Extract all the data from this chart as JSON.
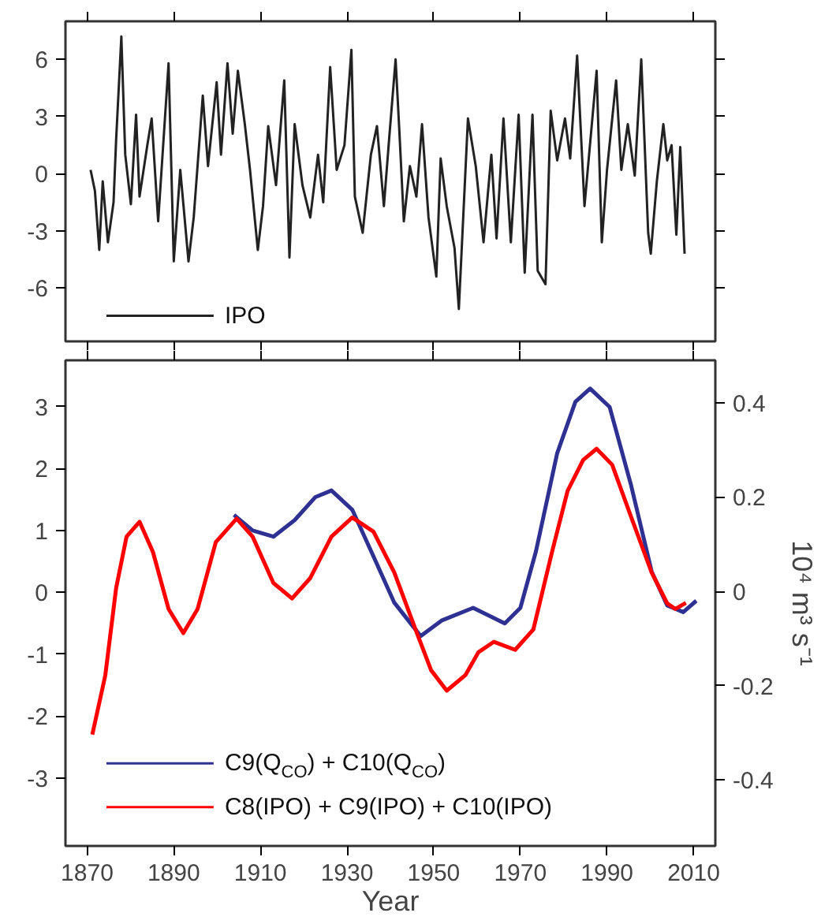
{
  "chart_data": [
    {
      "type": "line",
      "xlim": [
        1865,
        2015
      ],
      "xticks": [
        {
          "value": 1870,
          "label": null
        },
        {
          "value": 1890,
          "label": null
        },
        {
          "value": 1910,
          "label": null
        },
        {
          "value": 1930,
          "label": null
        },
        {
          "value": 1950,
          "label": null
        },
        {
          "value": 1970,
          "label": null
        },
        {
          "value": 1990,
          "label": null
        },
        {
          "value": 2010,
          "label": null
        }
      ],
      "ylim": [
        -8.8,
        8
      ],
      "yticks": [
        -6,
        -3,
        0,
        3,
        6
      ],
      "tick_labels": "y",
      "grid": false,
      "legend": "bottom left",
      "series": [
        {
          "name": "IPO",
          "color": "#222222",
          "x": [
            1870.8,
            1871.8,
            1872.8,
            1873.6,
            1874.8,
            1876.1,
            1876.7,
            1877.9,
            1878.8,
            1880.1,
            1881.3,
            1882.1,
            1883.9,
            1884.9,
            1886.4,
            1888.8,
            1890.0,
            1891.5,
            1893.4,
            1894.6,
            1896.7,
            1897.9,
            1899.9,
            1900.9,
            1902.4,
            1903.6,
            1904.8,
            1906.4,
            1907.6,
            1909.4,
            1910.6,
            1911.8,
            1913.6,
            1915.5,
            1916.7,
            1917.9,
            1919.7,
            1921.5,
            1923.3,
            1924.5,
            1926.1,
            1927.6,
            1929.4,
            1931.0,
            1931.8,
            1933.6,
            1935.5,
            1936.9,
            1938.5,
            1939.7,
            1941.2,
            1942.1,
            1943.1,
            1944.5,
            1946.0,
            1947.3,
            1948.8,
            1950.6,
            1951.6,
            1953.0,
            1954.8,
            1955.8,
            1957.9,
            1959.7,
            1961.5,
            1963.3,
            1964.5,
            1966.1,
            1967.8,
            1969.6,
            1971.0,
            1972.8,
            1974.0,
            1975.8,
            1977.0,
            1978.5,
            1980.3,
            1981.5,
            1983.1,
            1984.8,
            1987.6,
            1988.8,
            1990.0,
            1992.1,
            1993.3,
            1994.8,
            1996.4,
            1997.9,
            1999.5,
            2000.1,
            2001.5,
            2003.0,
            2003.9,
            2004.9,
            2006.0,
            2006.9,
            2007.9
          ],
          "values": [
            0.2,
            -0.9,
            -4.0,
            -0.4,
            -3.6,
            -1.5,
            1.8,
            7.2,
            1.0,
            -1.6,
            3.1,
            -1.2,
            1.5,
            2.9,
            -2.5,
            5.8,
            -4.6,
            0.2,
            -4.6,
            -2.3,
            4.1,
            0.4,
            4.8,
            1.0,
            5.8,
            2.1,
            5.4,
            2.6,
            0.2,
            -4.0,
            -1.7,
            2.5,
            -0.6,
            4.9,
            -4.4,
            2.6,
            -0.6,
            -2.3,
            1.0,
            -1.5,
            5.6,
            0.2,
            1.5,
            6.5,
            -1.2,
            -3.1,
            1.0,
            2.5,
            -1.7,
            1.8,
            6.0,
            2.1,
            -2.5,
            0.4,
            -1.2,
            2.6,
            -2.3,
            -5.4,
            0.8,
            -1.7,
            -3.9,
            -7.1,
            2.9,
            0.4,
            -3.6,
            1.0,
            -3.4,
            2.9,
            -3.6,
            3.1,
            -5.2,
            3.1,
            -5.1,
            -5.8,
            3.3,
            0.7,
            2.9,
            0.8,
            6.2,
            -1.7,
            5.4,
            -3.6,
            0.2,
            4.9,
            0.2,
            2.6,
            -0.1,
            6.0,
            -3.1,
            -4.2,
            -0.4,
            2.6,
            0.7,
            1.5,
            -3.2,
            1.4,
            -4.2
          ]
        }
      ]
    },
    {
      "type": "line",
      "xlabel": "Year",
      "y2label": "10⁴ m³ s⁻¹",
      "xlim": [
        1865,
        2015
      ],
      "xticks": [
        1870,
        1890,
        1910,
        1930,
        1950,
        1970,
        1990,
        2010
      ],
      "ylim": [
        -4.1,
        3.75
      ],
      "yticks": [
        -3,
        -2,
        -1,
        0,
        1,
        2,
        3
      ],
      "y2lim": [
        -0.54,
        0.49
      ],
      "y2ticks": [
        -0.4,
        -0.2,
        0,
        0.2,
        0.4
      ],
      "grid": false,
      "legend": "bottom left",
      "series": [
        {
          "name": "C9(Q$_{CO}$) + C10(Q$_{CO}$)",
          "color": "#2e3192",
          "axis": "y2",
          "x": [
            1903.9,
            1908.2,
            1913.0,
            1917.9,
            1922.7,
            1926.4,
            1931.2,
            1936.1,
            1940.9,
            1947.0,
            1951.8,
            1959.1,
            1966.4,
            1970.0,
            1973.6,
            1978.5,
            1982.7,
            1986.1,
            1990.6,
            1995.5,
            2000.3,
            2003.9,
            2007.6,
            2010.6
          ],
          "values": [
            0.162,
            0.129,
            0.116,
            0.151,
            0.2,
            0.214,
            0.173,
            0.074,
            -0.024,
            -0.095,
            -0.062,
            -0.035,
            -0.068,
            -0.035,
            0.085,
            0.293,
            0.402,
            0.43,
            0.391,
            0.227,
            0.042,
            -0.03,
            -0.044,
            -0.02
          ]
        },
        {
          "name": "C8(IPO) + C9(IPO) + C10(IPO)",
          "color": "#ff0000",
          "x": [
            1871.2,
            1874.2,
            1876.7,
            1879.1,
            1882.1,
            1885.2,
            1888.8,
            1892.2,
            1895.5,
            1899.7,
            1904.5,
            1908.2,
            1913.0,
            1917.3,
            1921.5,
            1926.4,
            1931.2,
            1936.1,
            1940.9,
            1945.8,
            1949.4,
            1953.0,
            1957.3,
            1960.3,
            1963.9,
            1968.8,
            1973.0,
            1977.3,
            1980.9,
            1984.5,
            1987.6,
            1991.2,
            1995.5,
            2000.3,
            2003.9,
            2005.8,
            2008.2
          ],
          "values": [
            -2.3,
            -1.34,
            0.07,
            0.9,
            1.14,
            0.65,
            -0.27,
            -0.66,
            -0.27,
            0.81,
            1.19,
            0.9,
            0.15,
            -0.1,
            0.23,
            0.9,
            1.21,
            0.98,
            0.32,
            -0.6,
            -1.26,
            -1.59,
            -1.34,
            -0.97,
            -0.8,
            -0.93,
            -0.6,
            0.65,
            1.64,
            2.14,
            2.32,
            2.06,
            1.23,
            0.32,
            -0.18,
            -0.27,
            -0.17
          ]
        }
      ]
    }
  ]
}
